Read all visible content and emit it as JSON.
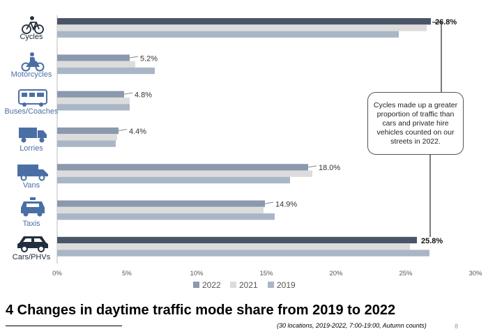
{
  "chart_data": {
    "type": "bar",
    "orientation": "horizontal",
    "title": "4 Changes in daytime traffic mode share from 2019 to 2022",
    "subtitle": "(30 locations, 2019-2022, 7:00-19:00, Autumn counts)",
    "categories": [
      "Cycles",
      "Motorcycles",
      "Buses/Coaches",
      "Lorries",
      "Vans",
      "Taxis",
      "Cars/PHVs"
    ],
    "category_icons": [
      "bicycle-icon",
      "motorcycle-icon",
      "bus-icon",
      "lorry-icon",
      "van-icon",
      "taxi-icon",
      "car-icon"
    ],
    "series": [
      {
        "name": "2022",
        "values": [
          26.8,
          5.2,
          4.8,
          4.4,
          18.0,
          14.9,
          25.8
        ]
      },
      {
        "name": "2021",
        "values": [
          26.5,
          5.6,
          5.2,
          4.3,
          18.3,
          14.8,
          25.3
        ]
      },
      {
        "name": "2019",
        "values": [
          24.5,
          7.0,
          5.2,
          4.2,
          16.7,
          15.6,
          26.7
        ]
      }
    ],
    "data_labels": [
      "26.8%",
      "5.2%",
      "4.8%",
      "4.4%",
      "18.0%",
      "14.9%",
      "25.8%"
    ],
    "xlim": [
      0,
      30
    ],
    "xticks": [
      0,
      5,
      10,
      15,
      20,
      25,
      30
    ],
    "xtick_labels": [
      "0%",
      "5%",
      "10%",
      "15%",
      "20%",
      "25%",
      "30%"
    ],
    "xlabel": "",
    "ylabel": "",
    "legend": {
      "position": "bottom",
      "entries": [
        "2022",
        "2021",
        "2019"
      ]
    },
    "annotation": "Cycles made up a greater proportion of traffic than cars and private hire vehicles counted on our streets in 2022."
  },
  "colors": {
    "2022": "#8a99ad",
    "2022_highlight": "#4a5568",
    "2021": "#dcdcdc",
    "2019": "#a9b6c6",
    "category_label": "#4a6fa5",
    "category_label_dark": "#222e3c"
  },
  "footer": {
    "page_number": "8"
  }
}
